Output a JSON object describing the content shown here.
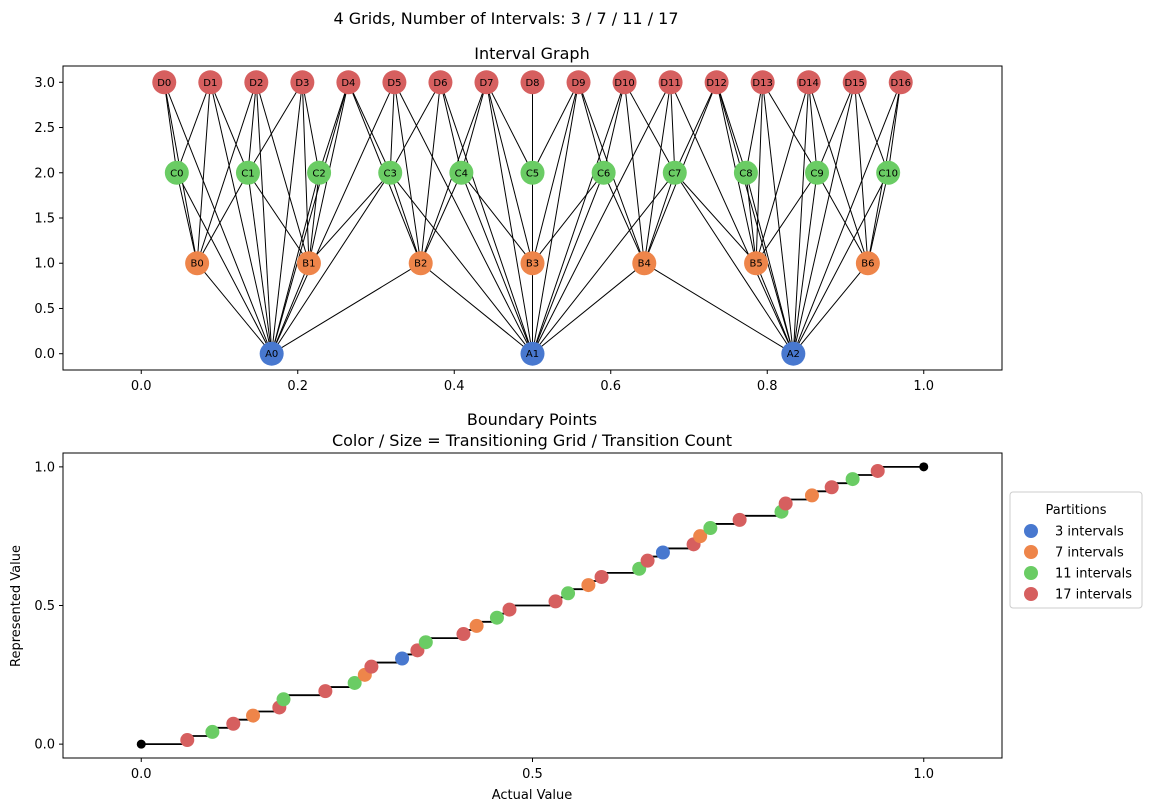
{
  "suptitle": "4 Grids, Number of Intervals: 3 / 7 / 11 / 17",
  "chart_data": [
    {
      "type": "scatter",
      "title": "Interval Graph",
      "xlabel": "",
      "ylabel": "",
      "xlim": [
        -0.1,
        1.1
      ],
      "ylim": [
        -0.18,
        3.18
      ],
      "x_ticks": [
        0.0,
        0.2,
        0.4,
        0.6,
        0.8,
        1.0
      ],
      "x_tick_labels": [
        "0.0",
        "0.2",
        "0.4",
        "0.6",
        "0.8",
        "1.0"
      ],
      "y_ticks": [
        0.0,
        0.5,
        1.0,
        1.5,
        2.0,
        2.5,
        3.0
      ],
      "y_tick_labels": [
        "0.0",
        "0.5",
        "1.0",
        "1.5",
        "2.0",
        "2.5",
        "3.0"
      ],
      "grid": false,
      "series": [
        {
          "level": 0,
          "prefix": "A",
          "count": 3,
          "y": 0.0,
          "color": "#4878cf"
        },
        {
          "level": 1,
          "prefix": "B",
          "count": 7,
          "y": 1.0,
          "color": "#ee854a"
        },
        {
          "level": 2,
          "prefix": "C",
          "count": 11,
          "y": 2.0,
          "color": "#6acc64"
        },
        {
          "level": 3,
          "prefix": "D",
          "count": 17,
          "y": 3.0,
          "color": "#d65f5f"
        }
      ],
      "edges": "lines connect every pair of nodes from different grids whose intervals overlap"
    },
    {
      "type": "line",
      "title": "Boundary Points",
      "subtitle": "Color / Size = Transitioning Grid / Transition Count",
      "xlabel": "Actual Value",
      "ylabel": "Represented Value",
      "xlim": [
        -0.1,
        1.1
      ],
      "ylim": [
        -0.05,
        1.05
      ],
      "x_ticks": [
        0.0,
        0.5,
        1.0
      ],
      "x_tick_labels": [
        "0.0",
        "0.5",
        "1.0"
      ],
      "y_ticks": [
        0.0,
        0.5,
        1.0
      ],
      "y_tick_labels": [
        "0.0",
        "0.5",
        "1.0"
      ],
      "grid": false,
      "step_color": "#000000",
      "endpoint_color": "#000000",
      "legend": {
        "title": "Partitions",
        "placement": "center-right outside",
        "entries": [
          {
            "label": "3 intervals",
            "count": 3,
            "color": "#4878cf"
          },
          {
            "label": "7 intervals",
            "count": 7,
            "color": "#ee854a"
          },
          {
            "label": "11 intervals",
            "count": 11,
            "color": "#6acc64"
          },
          {
            "label": "17 intervals",
            "count": 17,
            "color": "#d65f5f"
          }
        ]
      }
    }
  ]
}
